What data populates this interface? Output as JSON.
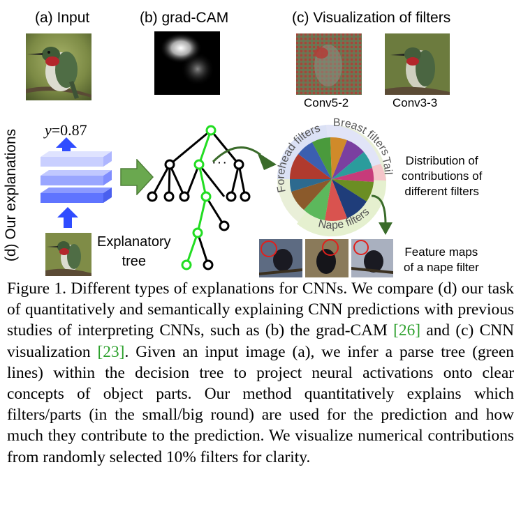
{
  "panels": {
    "a_label": "(a) Input",
    "b_label": "(b) grad-CAM",
    "c_label": "(c) Visualization of filters",
    "c_sub1": "Conv5-2",
    "c_sub2": "Conv3-3",
    "d_label": "(d) Our explanations"
  },
  "explanation": {
    "y_var": "y",
    "y_value": "=0.87",
    "tree_label_line1": "Explanatory",
    "tree_label_line2": "tree",
    "tree_ellipsis": "···",
    "pie_labels": [
      "Forehead filters",
      "Breast filters",
      "Tail",
      "Nape filters"
    ],
    "distribution_lines": [
      "Distribution of",
      "contributions of",
      "different filters"
    ],
    "feature_lines": [
      "Feature maps",
      "of a nape filter"
    ]
  },
  "caption": {
    "title": "Figure 1. Different types of explanations for CNNs.",
    "text_1": " We compare (d) our task of quantitatively and semantically explaining CNN predictions with previous studies of interpreting CNNs, such as (b) the grad-CAM ",
    "cite_1": "[26]",
    "text_2": " and (c) CNN visualization ",
    "cite_2": "[23]",
    "text_3": ". Given an input image (a), we infer a parse tree (green lines) within the deci­sion tree to project neural activations onto clear concepts of object parts. Our method quantitatively explains which filters/parts (in the small/big round) are used for the prediction and how much they contribute to the prediction. We visualize numerical contri­butions from randomly selected 10% filters for clarity."
  },
  "colors": {
    "tree_green": "#22dd22",
    "arrow_green": "#6aa84f",
    "arrow_dark_green": "#3a6b2a",
    "layer_blue": "#3355ff",
    "layer_light": "#b6bfff",
    "cite_green": "#2ca02c"
  }
}
